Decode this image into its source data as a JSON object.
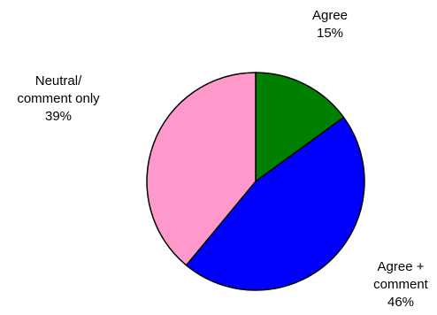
{
  "chart_data": {
    "type": "pie",
    "slices": [
      {
        "label": "Agree",
        "pct_label": "15%",
        "value": 15,
        "color": "#008000"
      },
      {
        "label": "Agree + comment",
        "label_lines": [
          "Agree +",
          "comment"
        ],
        "pct_label": "46%",
        "value": 46,
        "color": "#0000FF"
      },
      {
        "label": "Neutral/ comment only",
        "label_lines": [
          "Neutral/",
          "comment only"
        ],
        "pct_label": "39%",
        "value": 39,
        "color": "#FF99CC"
      }
    ],
    "start": "12 o'clock",
    "direction": "clockwise"
  }
}
